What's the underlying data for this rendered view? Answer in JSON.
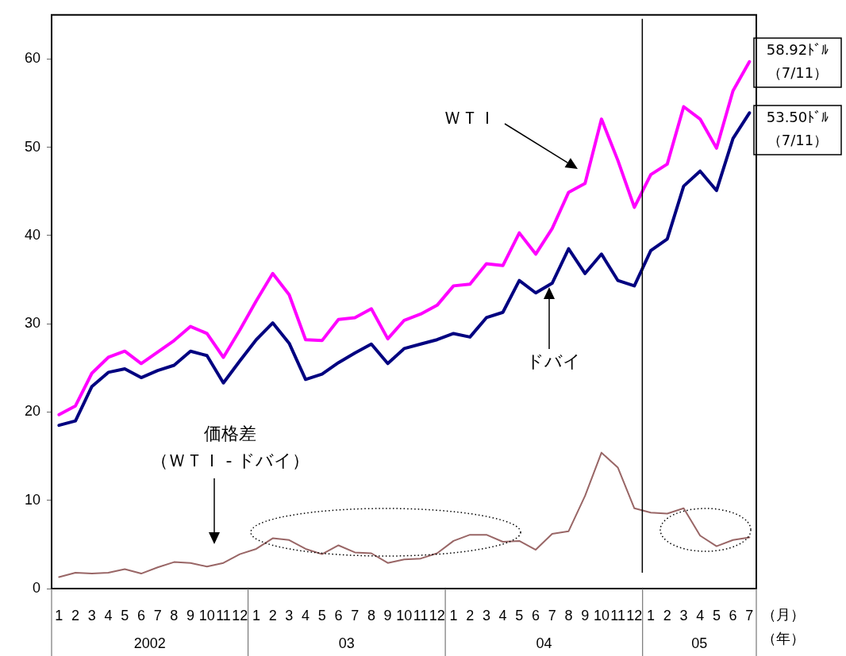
{
  "chart_data": {
    "type": "line",
    "x": [
      "2002-01",
      "2002-02",
      "2002-03",
      "2002-04",
      "2002-05",
      "2002-06",
      "2002-07",
      "2002-08",
      "2002-09",
      "2002-10",
      "2002-11",
      "2002-12",
      "2003-01",
      "2003-02",
      "2003-03",
      "2003-04",
      "2003-05",
      "2003-06",
      "2003-07",
      "2003-08",
      "2003-09",
      "2003-10",
      "2003-11",
      "2003-12",
      "2004-01",
      "2004-02",
      "2004-03",
      "2004-04",
      "2004-05",
      "2004-06",
      "2004-07",
      "2004-08",
      "2004-09",
      "2004-10",
      "2004-11",
      "2004-12",
      "2005-01",
      "2005-02",
      "2005-03",
      "2005-04",
      "2005-05",
      "2005-06",
      "2005-07"
    ],
    "series": [
      {
        "color": "#ff00ff",
        "values": [
          19.7,
          20.7,
          24.4,
          26.2,
          26.9,
          25.5,
          26.8,
          28.1,
          29.7,
          28.9,
          26.2,
          29.3,
          32.6,
          35.7,
          33.3,
          28.2,
          28.1,
          30.5,
          30.7,
          31.7,
          28.3,
          30.4,
          31.1,
          32.1,
          34.3,
          34.5,
          36.8,
          36.6,
          40.3,
          37.9,
          40.8,
          44.9,
          45.9,
          53.2,
          48.5,
          43.2,
          46.9,
          48.1,
          54.6,
          53.2,
          49.9,
          56.4,
          59.7
        ]
      },
      {
        "color": "#000080",
        "values": [
          18.5,
          19.0,
          22.9,
          24.5,
          24.9,
          23.9,
          24.7,
          25.3,
          26.9,
          26.4,
          23.3,
          25.8,
          28.2,
          30.1,
          27.8,
          23.7,
          24.3,
          25.6,
          26.7,
          27.7,
          25.5,
          27.2,
          27.7,
          28.2,
          28.9,
          28.5,
          30.7,
          31.3,
          34.9,
          33.5,
          34.6,
          38.5,
          35.7,
          37.9,
          34.9,
          34.3,
          38.3,
          39.6,
          45.6,
          47.3,
          45.1,
          51.0,
          53.9
        ]
      },
      {
        "color": "#996666",
        "values": [
          1.3,
          1.8,
          1.7,
          1.8,
          2.2,
          1.7,
          2.4,
          3.0,
          2.9,
          2.5,
          2.9,
          3.9,
          4.5,
          5.7,
          5.5,
          4.5,
          3.9,
          4.9,
          4.1,
          4.0,
          2.9,
          3.3,
          3.4,
          4.0,
          5.4,
          6.1,
          6.1,
          5.3,
          5.4,
          4.4,
          6.2,
          6.5,
          10.5,
          15.4,
          13.7,
          9.1,
          8.6,
          8.5,
          9.1,
          6.0,
          4.8,
          5.5,
          5.8
        ]
      }
    ],
    "xlim": [
      "2001-12-18",
      "2005-07-14"
    ],
    "xticks": [
      {
        "value": "2002-01",
        "label": "1"
      },
      {
        "value": "2002-02",
        "label": "2"
      },
      {
        "value": "2002-03",
        "label": "3"
      },
      {
        "value": "2002-04",
        "label": "4"
      },
      {
        "value": "2002-05",
        "label": "5"
      },
      {
        "value": "2002-06",
        "label": "6"
      },
      {
        "value": "2002-07",
        "label": "7"
      },
      {
        "value": "2002-08",
        "label": "8"
      },
      {
        "value": "2002-09",
        "label": "9"
      },
      {
        "value": "2002-10",
        "label": "10"
      },
      {
        "value": "2002-11",
        "label": "11"
      },
      {
        "value": "2002-12",
        "label": "12"
      },
      {
        "value": "2003-01",
        "label": "1"
      },
      {
        "value": "2003-02",
        "label": "2"
      },
      {
        "value": "2003-03",
        "label": "3"
      },
      {
        "value": "2003-04",
        "label": "4"
      },
      {
        "value": "2003-05",
        "label": "5"
      },
      {
        "value": "2003-06",
        "label": "6"
      },
      {
        "value": "2003-07",
        "label": "7"
      },
      {
        "value": "2003-08",
        "label": "8"
      },
      {
        "value": "2003-09",
        "label": "9"
      },
      {
        "value": "2003-10",
        "label": "10"
      },
      {
        "value": "2003-11",
        "label": "11"
      },
      {
        "value": "2003-12",
        "label": "12"
      },
      {
        "value": "2004-01",
        "label": "1"
      },
      {
        "value": "2004-02",
        "label": "2"
      },
      {
        "value": "2004-03",
        "label": "3"
      },
      {
        "value": "2004-04",
        "label": "4"
      },
      {
        "value": "2004-05",
        "label": "5"
      },
      {
        "value": "2004-06",
        "label": "6"
      },
      {
        "value": "2004-07",
        "label": "7"
      },
      {
        "value": "2004-08",
        "label": "8"
      },
      {
        "value": "2004-09",
        "label": "9"
      },
      {
        "value": "2004-10",
        "label": "10"
      },
      {
        "value": "2004-11",
        "label": "11"
      },
      {
        "value": "2004-12",
        "label": "12"
      },
      {
        "value": "2005-01",
        "label": "1"
      },
      {
        "value": "2005-02",
        "label": "2"
      },
      {
        "value": "2005-03",
        "label": "3"
      },
      {
        "value": "2005-04",
        "label": "4"
      },
      {
        "value": "2005-05",
        "label": "5"
      },
      {
        "value": "2005-06",
        "label": "6"
      },
      {
        "value": "2005-07",
        "label": "7"
      }
    ],
    "ylim": [
      0,
      65
    ],
    "yticks": [
      0,
      10,
      20,
      30,
      40,
      50,
      60
    ],
    "ref_lines": [
      {
        "axis": "x",
        "value": "2004-12-16",
        "color": "#000000"
      }
    ],
    "annotations": [
      "2002",
      "03",
      "04",
      "05",
      "（月）",
      "（年）",
      "58.92ﾄﾞﾙ",
      "（7/11）",
      "53.50ﾄﾞﾙ",
      "（7/11）",
      "ＷＴＩ",
      "ドバイ",
      "価格差",
      "（ＷＴＩ - ドバイ）"
    ],
    "marker": "none",
    "line_style": "solid",
    "legend": false,
    "grid": false
  }
}
